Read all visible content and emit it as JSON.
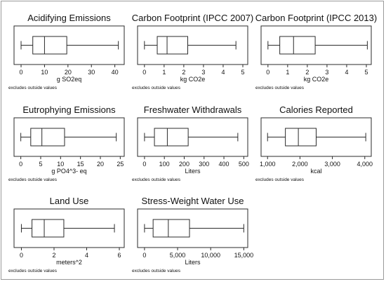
{
  "colors": {
    "box_fill": "#ffffff",
    "line": "#2b2b2b",
    "frame": "#9a9a9a",
    "text": "#111111"
  },
  "chart_data": [
    {
      "type": "box",
      "title": "Acidifying Emissions",
      "xlabel": "g SO2eq",
      "note": "excludes outside values",
      "ticks": [
        0,
        10,
        20,
        30,
        40
      ],
      "tick_labels": [
        "0",
        "10",
        "20",
        "30",
        "40"
      ],
      "xlim": [
        -3,
        44
      ],
      "box": {
        "whisker_low": 0,
        "q1": 5,
        "median": 10,
        "q3": 19.5,
        "whisker_high": 41.5
      }
    },
    {
      "type": "box",
      "title": "Carbon Footprint (IPCC 2007)",
      "xlabel": "kg CO2e",
      "note": "excludes outside values",
      "ticks": [
        0,
        1,
        2,
        3,
        4,
        5
      ],
      "tick_labels": [
        "0",
        "1",
        "2",
        "3",
        "4",
        "5"
      ],
      "xlim": [
        -0.35,
        5.25
      ],
      "box": {
        "whisker_low": 0,
        "q1": 0.65,
        "median": 1.15,
        "q3": 2.2,
        "whisker_high": 4.65
      }
    },
    {
      "type": "box",
      "title": "Carbon Footprint (IPCC 2013)",
      "xlabel": "kg CO2e",
      "note": "excludes outside values",
      "ticks": [
        0,
        1,
        2,
        3,
        4,
        5
      ],
      "tick_labels": [
        "0",
        "1",
        "2",
        "3",
        "4",
        "5"
      ],
      "xlim": [
        -0.35,
        5.25
      ],
      "box": {
        "whisker_low": 0,
        "q1": 0.6,
        "median": 1.3,
        "q3": 2.4,
        "whisker_high": 5.05
      }
    },
    {
      "type": "box",
      "title": "Eutrophying Emissions",
      "xlabel": "g PO4^3- eq",
      "note": "excludes outside values",
      "ticks": [
        0,
        5,
        10,
        15,
        20,
        25
      ],
      "tick_labels": [
        "0",
        "5",
        "10",
        "15",
        "20",
        "25"
      ],
      "xlim": [
        -1.7,
        26
      ],
      "box": {
        "whisker_low": 0,
        "q1": 2.5,
        "median": 5.3,
        "q3": 11,
        "whisker_high": 24
      }
    },
    {
      "type": "box",
      "title": "Freshwater Withdrawals",
      "xlabel": "Liters",
      "note": "excludes outside values",
      "ticks": [
        0,
        100,
        200,
        300,
        400,
        500
      ],
      "tick_labels": [
        "0",
        "100",
        "200",
        "300",
        "400",
        "500"
      ],
      "xlim": [
        -35,
        520
      ],
      "box": {
        "whisker_low": 0,
        "q1": 50,
        "median": 115,
        "q3": 220,
        "whisker_high": 470
      }
    },
    {
      "type": "box",
      "title": "Calories Reported",
      "xlabel": "kcal",
      "note": "excludes outside values",
      "ticks": [
        1000,
        2000,
        3000,
        4000
      ],
      "tick_labels": [
        "1,000",
        "2,000",
        "3,000",
        "4,000"
      ],
      "xlim": [
        800,
        4200
      ],
      "box": {
        "whisker_low": 1000,
        "q1": 1550,
        "median": 1950,
        "q3": 2500,
        "whisker_high": 4030
      }
    },
    {
      "type": "box",
      "title": "Land Use",
      "xlabel": "meters^2",
      "note": "excludes outside values",
      "ticks": [
        0,
        2,
        4,
        6
      ],
      "tick_labels": [
        "0",
        "2",
        "4",
        "6"
      ],
      "xlim": [
        -0.45,
        6.3
      ],
      "box": {
        "whisker_low": 0,
        "q1": 0.65,
        "median": 1.4,
        "q3": 2.6,
        "whisker_high": 5.7
      }
    },
    {
      "type": "box",
      "title": "Stress-Weight Water Use",
      "xlabel": "Liters",
      "note": "excludes outside values",
      "ticks": [
        0,
        5000,
        10000,
        15000
      ],
      "tick_labels": [
        "0",
        "5,000",
        "10,000",
        "15,000"
      ],
      "xlim": [
        -1050,
        15600
      ],
      "box": {
        "whisker_low": 0,
        "q1": 1300,
        "median": 3600,
        "q3": 6800,
        "whisker_high": 15000
      }
    }
  ]
}
